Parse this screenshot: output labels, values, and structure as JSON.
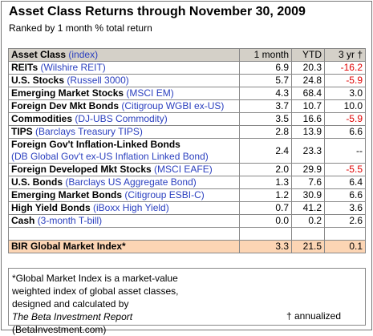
{
  "header": {
    "title": "Asset Class Returns through November 30, 2009",
    "subtitle": "Ranked by 1 month % total return"
  },
  "table": {
    "columns": {
      "label": "Asset Class",
      "index": "(index)",
      "one_month": "1 month",
      "ytd": "YTD",
      "three_yr": "3 yr †"
    },
    "rows": [
      {
        "name": "REITs",
        "index": "(Wilshire REIT)",
        "values": [
          "6.9",
          "20.3",
          "-16.2"
        ]
      },
      {
        "name": "U.S. Stocks",
        "index": "(Russell 3000)",
        "values": [
          "5.7",
          "24.8",
          "-5.9"
        ]
      },
      {
        "name": "Emerging Market Stocks",
        "index": "(MSCI EM)",
        "values": [
          "4.3",
          "68.4",
          "3.0"
        ]
      },
      {
        "name": "Foreign Dev Mkt Bonds",
        "index": "(Citigroup WGBI ex-US)",
        "values": [
          "3.7",
          "10.7",
          "10.0"
        ]
      },
      {
        "name": "Commodities",
        "index": "(DJ-UBS Commodity)",
        "values": [
          "3.5",
          "16.6",
          "-5.9"
        ]
      },
      {
        "name": "TIPS",
        "index": "(Barclays Treasury TIPS)",
        "values": [
          "2.8",
          "13.9",
          "6.6"
        ]
      },
      {
        "name": "Foreign Gov't Inflation-Linked Bonds",
        "index": "(DB Global Gov't ex-US Inflation Linked Bond)",
        "values": [
          "2.4",
          "23.3",
          "--"
        ]
      },
      {
        "name": "Foreign Developed Mkt Stocks",
        "index": "(MSCI EAFE)",
        "values": [
          "2.0",
          "29.9",
          "-5.5"
        ]
      },
      {
        "name": "U.S. Bonds",
        "index": "(Barclays US Aggregate Bond)",
        "values": [
          "1.3",
          "7.6",
          "6.4"
        ]
      },
      {
        "name": "Emerging Market Bonds",
        "index": "(Citigroup ESBI-C)",
        "values": [
          "1.2",
          "30.9",
          "6.6"
        ]
      },
      {
        "name": "High Yield Bonds",
        "index": "(iBoxx High Yield)",
        "values": [
          "0.7",
          "41.2",
          "3.6"
        ]
      },
      {
        "name": "Cash",
        "index": "(3-month T-bill)",
        "values": [
          "0.0",
          "0.2",
          "2.6"
        ]
      }
    ],
    "total": {
      "name": "BIR Global Market Index*",
      "values": [
        "3.3",
        "21.5",
        "0.1"
      ]
    }
  },
  "footer": {
    "note": "*Global Market Index is a market-value weighted index of global asset classes, designed and calculated by",
    "source": "The Beta Investment Report",
    "source_site": "(BetaInvestment.com)",
    "dagger": "† annualized"
  }
}
